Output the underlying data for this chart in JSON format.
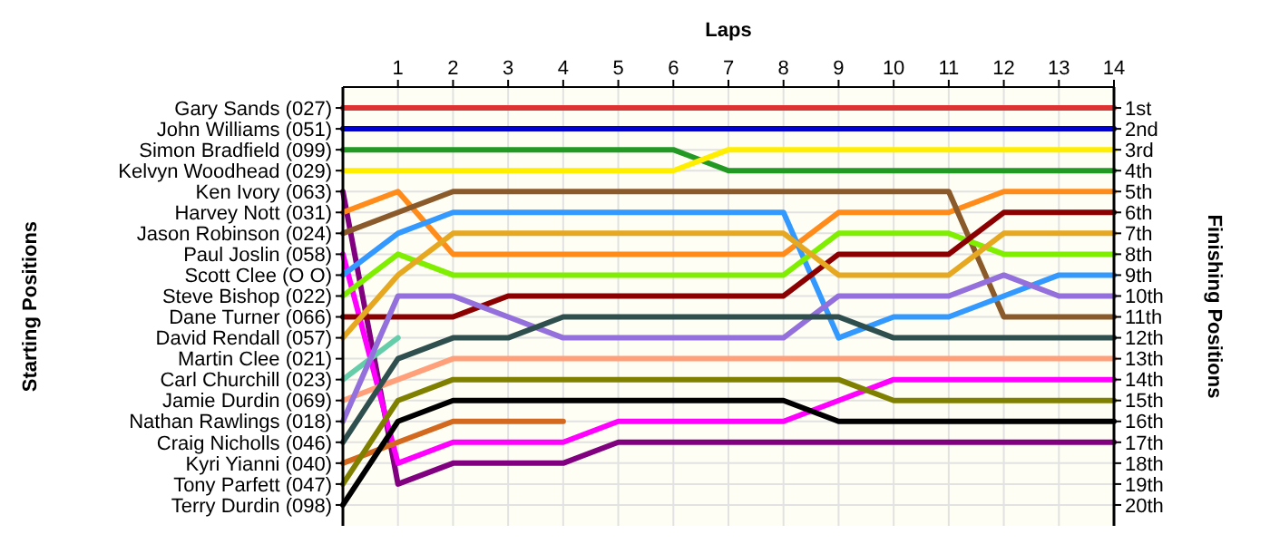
{
  "chart_data": {
    "type": "line",
    "xlabel": "Laps",
    "ylabel": "Finishing Positions",
    "x": [
      0,
      1,
      2,
      3,
      4,
      5,
      6,
      7,
      8,
      9,
      10,
      11,
      12,
      13,
      14
    ],
    "xlim": [
      0,
      14
    ],
    "xticks": [
      1,
      2,
      3,
      4,
      5,
      6,
      7,
      8,
      9,
      10,
      11,
      12,
      13,
      14
    ],
    "ylim": [
      21,
      0
    ],
    "yticks": [
      {
        "value": 1,
        "label": "1st"
      },
      {
        "value": 2,
        "label": "2nd"
      },
      {
        "value": 3,
        "label": "3rd"
      },
      {
        "value": 4,
        "label": "4th"
      },
      {
        "value": 5,
        "label": "5th"
      },
      {
        "value": 6,
        "label": "6th"
      },
      {
        "value": 7,
        "label": "7th"
      },
      {
        "value": 8,
        "label": "8th"
      },
      {
        "value": 9,
        "label": "9th"
      },
      {
        "value": 10,
        "label": "10th"
      },
      {
        "value": 11,
        "label": "11th"
      },
      {
        "value": 12,
        "label": "12th"
      },
      {
        "value": 13,
        "label": "13th"
      },
      {
        "value": 14,
        "label": "14th"
      },
      {
        "value": 15,
        "label": "15th"
      },
      {
        "value": 16,
        "label": "16th"
      },
      {
        "value": 17,
        "label": "17th"
      },
      {
        "value": 18,
        "label": "18th"
      },
      {
        "value": 19,
        "label": "19th"
      },
      {
        "value": 20,
        "label": "20th"
      }
    ],
    "annotations": [
      "Starting Positions",
      "Gary Sands (027)",
      "John Williams (051)",
      "Simon Bradfield (099)",
      "Kelvyn Woodhead (029)",
      "Ken Ivory (063)",
      "Harvey Nott (031)",
      "Jason Robinson (024)",
      "Paul Joslin (058)",
      "Scott Clee (O O)",
      "Steve Bishop (022)",
      "Dane Turner (066)",
      "David Rendall (057)",
      "Martin Clee (021)",
      "Carl Churchill (023)",
      "Jamie Durdin (069)",
      "Nathan Rawlings (018)",
      "Craig Nicholls (046)",
      "Kyri Yianni (040)",
      "Tony Parfett (047)",
      "Terry Durdin (098)"
    ],
    "grid": true,
    "series": [
      {
        "color": "#dd3333",
        "values": [
          1,
          1,
          1,
          1,
          1,
          1,
          1,
          1,
          1,
          1,
          1,
          1,
          1,
          1,
          1
        ]
      },
      {
        "color": "#0000cc",
        "values": [
          2,
          2,
          2,
          2,
          2,
          2,
          2,
          2,
          2,
          2,
          2,
          2,
          2,
          2,
          2
        ]
      },
      {
        "color": "#229922",
        "values": [
          3,
          3,
          3,
          3,
          3,
          3,
          3,
          4,
          4,
          4,
          4,
          4,
          4,
          4,
          4
        ]
      },
      {
        "color": "#ffee00",
        "values": [
          4,
          4,
          4,
          4,
          4,
          4,
          4,
          3,
          3,
          3,
          3,
          3,
          3,
          3,
          3
        ]
      },
      {
        "color": "#800080",
        "values": [
          5,
          19,
          18,
          18,
          18,
          17,
          17,
          17,
          17,
          17,
          17,
          17,
          17,
          17,
          17
        ]
      },
      {
        "color": "#ff8c1a",
        "values": [
          6,
          5,
          8,
          8,
          8,
          8,
          8,
          8,
          8,
          6,
          6,
          6,
          5,
          5,
          5
        ]
      },
      {
        "color": "#8b5a2b",
        "values": [
          7,
          6,
          5,
          5,
          5,
          5,
          5,
          5,
          5,
          5,
          5,
          5,
          11,
          11,
          11
        ]
      },
      {
        "color": "#ff00ff",
        "values": [
          8,
          18,
          17,
          17,
          17,
          16,
          16,
          16,
          16,
          15,
          14,
          14,
          14,
          14,
          14
        ]
      },
      {
        "color": "#3399ff",
        "values": [
          9,
          7,
          6,
          6,
          6,
          6,
          6,
          6,
          6,
          12,
          11,
          11,
          10,
          9,
          9
        ]
      },
      {
        "color": "#80ee00",
        "values": [
          10,
          8,
          9,
          9,
          9,
          9,
          9,
          9,
          9,
          7,
          7,
          7,
          8,
          8,
          8
        ]
      },
      {
        "color": "#8b0000",
        "values": [
          11,
          11,
          11,
          10,
          10,
          10,
          10,
          10,
          10,
          8,
          8,
          8,
          6,
          6,
          6
        ]
      },
      {
        "color": "#e6a820",
        "values": [
          12,
          9,
          7,
          7,
          7,
          7,
          7,
          7,
          7,
          9,
          9,
          9,
          7,
          7,
          7
        ]
      },
      {
        "color": "#66cdaa",
        "values": [
          14,
          12,
          null,
          null,
          null,
          null,
          null,
          null,
          null,
          null,
          null,
          null,
          null,
          null,
          null
        ]
      },
      {
        "color": "#ffa07a",
        "values": [
          15,
          14,
          13,
          13,
          13,
          13,
          13,
          13,
          13,
          13,
          13,
          13,
          13,
          13,
          13
        ]
      },
      {
        "color": "#9370db",
        "values": [
          16,
          10,
          10,
          11,
          12,
          12,
          12,
          12,
          12,
          10,
          10,
          10,
          9,
          10,
          10
        ]
      },
      {
        "color": "#2f4f4f",
        "values": [
          17,
          13,
          12,
          12,
          11,
          11,
          11,
          11,
          11,
          11,
          12,
          12,
          12,
          12,
          12
        ]
      },
      {
        "color": "#d2691e",
        "values": [
          18,
          17,
          16,
          16,
          16,
          null,
          null,
          null,
          null,
          null,
          null,
          null,
          null,
          null,
          null
        ]
      },
      {
        "color": "#808000",
        "values": [
          19,
          15,
          14,
          14,
          14,
          14,
          14,
          14,
          14,
          14,
          15,
          15,
          15,
          15,
          15
        ]
      },
      {
        "color": "#000000",
        "values": [
          20,
          16,
          15,
          15,
          15,
          15,
          15,
          15,
          15,
          16,
          16,
          16,
          16,
          16,
          16
        ]
      }
    ]
  }
}
